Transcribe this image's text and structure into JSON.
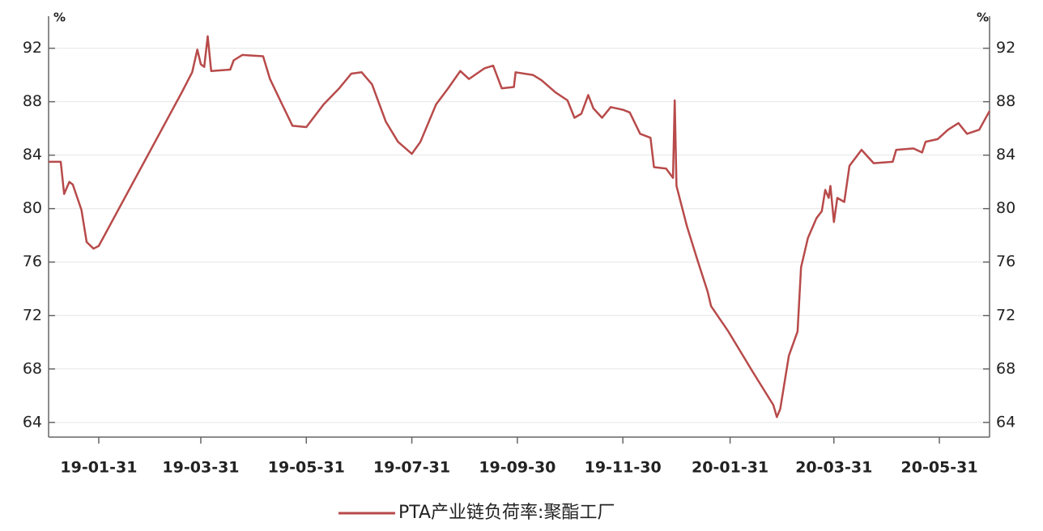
{
  "chart_data": {
    "type": "line",
    "y_unit": "%",
    "x": [
      "19-01-02",
      "19-01-09",
      "19-01-11",
      "19-01-14",
      "19-01-16",
      "19-01-21",
      "19-01-24",
      "19-01-28",
      "19-01-31",
      "19-03-20",
      "19-03-26",
      "19-03-29",
      "19-03-31",
      "19-04-02",
      "19-04-04",
      "19-04-06",
      "19-04-17",
      "19-04-19",
      "19-04-24",
      "19-05-06",
      "19-05-10",
      "19-05-17",
      "19-05-23",
      "19-05-31",
      "19-06-10",
      "19-06-19",
      "19-06-26",
      "19-07-02",
      "19-07-08",
      "19-07-16",
      "19-07-23",
      "19-07-31",
      "19-08-05",
      "19-08-14",
      "19-08-21",
      "19-08-28",
      "19-09-02",
      "19-09-11",
      "19-09-16",
      "19-09-21",
      "19-09-28",
      "19-09-29",
      "19-10-09",
      "19-10-14",
      "19-10-22",
      "19-10-29",
      "19-11-02",
      "19-11-06",
      "19-11-10",
      "19-11-13",
      "19-11-18",
      "19-11-23",
      "19-11-30",
      "19-12-04",
      "19-12-10",
      "19-12-16",
      "19-12-18",
      "19-12-25",
      "19-12-29",
      "19-12-30",
      "19-12-31",
      "20-01-06",
      "20-01-12",
      "20-01-18",
      "20-01-20",
      "20-01-30",
      "20-02-13",
      "20-02-25",
      "20-02-27",
      "20-02-29",
      "20-03-05",
      "20-03-10",
      "20-03-12",
      "20-03-16",
      "20-03-21",
      "20-03-24",
      "20-03-26",
      "20-03-28",
      "20-03-29",
      "20-03-31",
      "20-04-02",
      "20-04-06",
      "20-04-09",
      "20-04-16",
      "20-04-23",
      "20-05-04",
      "20-05-06",
      "20-05-16",
      "20-05-21",
      "20-05-23",
      "20-05-30",
      "20-06-05",
      "20-06-11",
      "20-06-16",
      "20-06-23",
      "20-06-29"
    ],
    "series": [
      {
        "name": "PTA产业链负荷率:聚酯工厂",
        "color": "#b84a4a",
        "values": [
          83.5,
          83.5,
          81.1,
          82,
          81.8,
          79.9,
          77.5,
          77,
          77.2,
          88.7,
          90.2,
          91.9,
          90.8,
          90.6,
          92.9,
          90.3,
          90.4,
          91.1,
          91.5,
          91.4,
          89.7,
          87.8,
          86.2,
          86.1,
          87.8,
          89,
          90.1,
          90.2,
          89.3,
          86.5,
          85,
          84.1,
          85,
          87.8,
          89,
          90.3,
          89.7,
          90.5,
          90.7,
          89,
          89.1,
          90.2,
          90,
          89.6,
          88.7,
          88.1,
          86.8,
          87.1,
          88.5,
          87.5,
          86.8,
          87.6,
          87.4,
          87.2,
          85.6,
          85.3,
          83.1,
          83,
          82.3,
          88.1,
          81.7,
          78.7,
          76.2,
          73.8,
          72.7,
          70.8,
          67.8,
          65.3,
          64.4,
          65,
          69,
          70.8,
          75.6,
          77.8,
          79.3,
          79.8,
          81.4,
          80.8,
          81.7,
          79,
          80.8,
          80.5,
          83.2,
          84.4,
          83.4,
          83.5,
          84.4,
          84.5,
          84.2,
          85,
          85.2,
          85.9,
          86.4,
          85.6,
          85.9,
          87.3
        ]
      }
    ],
    "xlim": [
      "19-01-02",
      "20-06-29"
    ],
    "xticks": [
      "19-01-31",
      "19-03-31",
      "19-05-31",
      "19-07-31",
      "19-09-30",
      "19-11-30",
      "20-01-31",
      "20-03-31",
      "20-05-31"
    ],
    "ylim": [
      62.9,
      94.4
    ],
    "yticks": [
      64,
      68,
      72,
      76,
      80,
      84,
      88,
      92
    ],
    "grid": true
  }
}
